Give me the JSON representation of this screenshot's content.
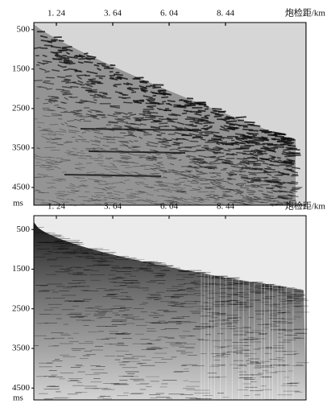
{
  "chart_data": [
    {
      "type": "seismic",
      "xlabel": "炮检距/km",
      "ylabel": "ms",
      "xlim": [
        0.28,
        11.87
      ],
      "ylim": [
        320,
        4950
      ],
      "xticks": [
        {
          "value": 1.24,
          "label": "1. 24"
        },
        {
          "value": 3.64,
          "label": "3. 64"
        },
        {
          "value": 6.04,
          "label": "6. 04"
        },
        {
          "value": 8.44,
          "label": "8. 44"
        }
      ],
      "yticks": [
        500,
        1500,
        2500,
        3500,
        4500
      ]
    },
    {
      "type": "seismic-processed",
      "xlabel": "炮检距/km",
      "ylabel": "ms",
      "xlim": [
        0.28,
        11.87
      ],
      "ylim": [
        150,
        4800
      ],
      "xticks": [
        {
          "value": 1.24,
          "label": "1. 24"
        },
        {
          "value": 3.64,
          "label": "3. 64"
        },
        {
          "value": 6.04,
          "label": "6. 04"
        },
        {
          "value": 8.44,
          "label": "8. 44"
        }
      ],
      "yticks": [
        500,
        1500,
        2500,
        3500,
        4500
      ]
    }
  ]
}
